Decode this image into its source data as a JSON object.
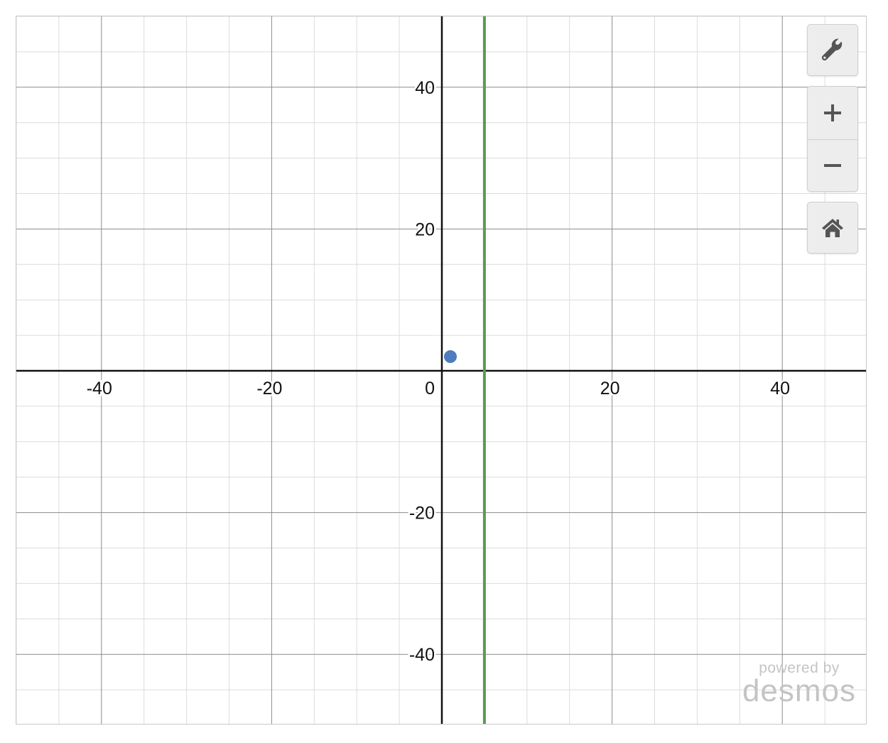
{
  "chart_data": {
    "type": "scatter",
    "title": "",
    "xlabel": "",
    "ylabel": "",
    "xlim": [
      -50,
      50
    ],
    "ylim": [
      -50,
      50
    ],
    "grid": true,
    "major_step": 20,
    "minor_step": 5,
    "x_ticks": [
      "-40",
      "-20",
      "20",
      "40"
    ],
    "y_ticks": [
      "40",
      "20",
      "-20",
      "-40"
    ],
    "origin_label": "0",
    "points": [
      {
        "x": 1,
        "y": 2,
        "color": "#4f7bbf"
      }
    ],
    "vertical_lines": [
      {
        "x": 5,
        "color": "#5a9a52"
      }
    ]
  },
  "controls": {
    "settings_icon": "wrench-icon",
    "zoom_in_icon": "plus-icon",
    "zoom_out_icon": "minus-icon",
    "home_icon": "home-icon"
  },
  "watermark": {
    "line1": "powered by",
    "line2": "desmos"
  }
}
